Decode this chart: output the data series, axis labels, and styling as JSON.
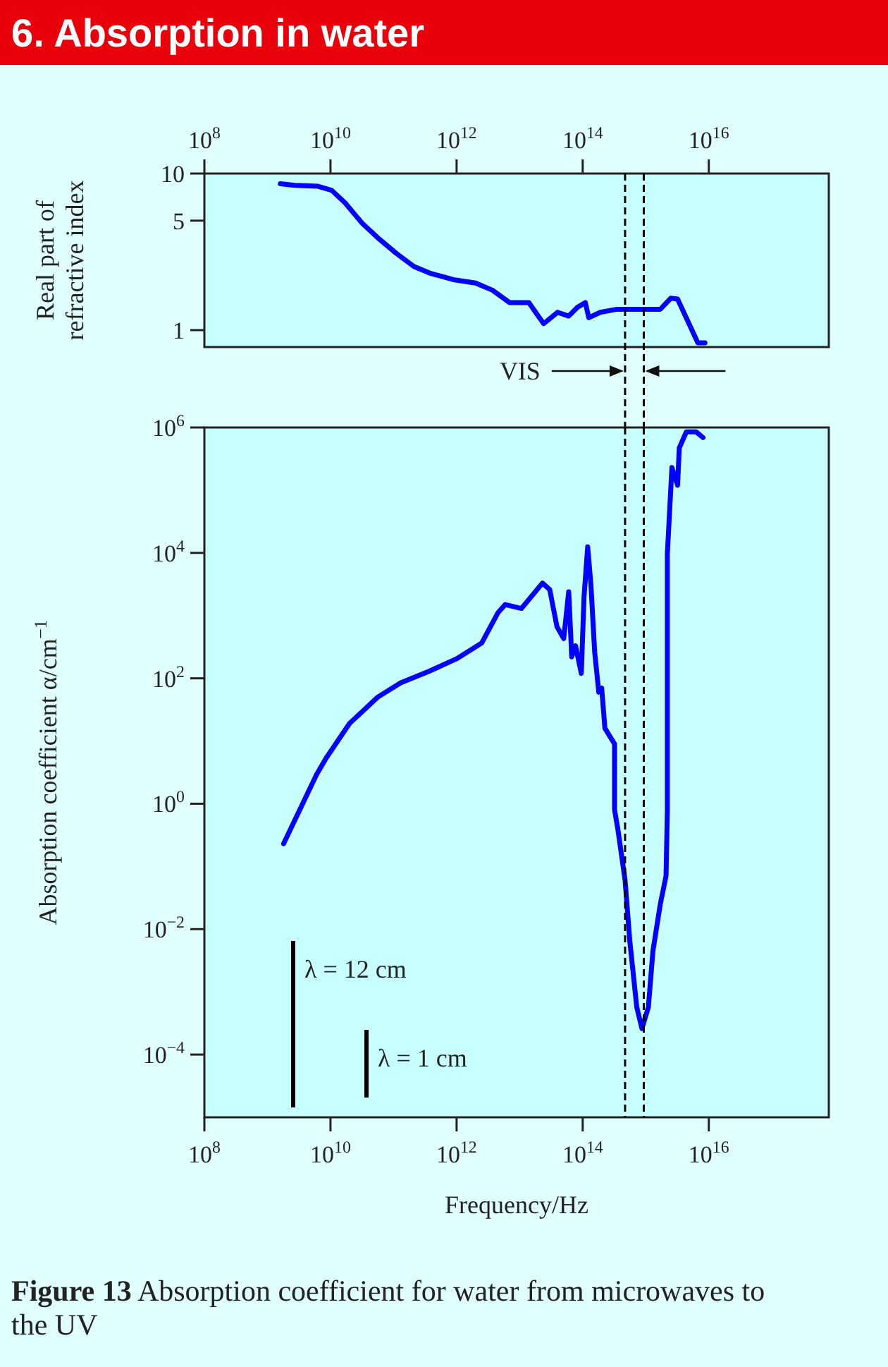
{
  "chart_data": [
    {
      "type": "line",
      "title": "6. Absorption in water",
      "ylabel": "Real part of refractive index",
      "log": "xy",
      "xlim": [
        100000000.0,
        8e+17
      ],
      "ylim": [
        0.78,
        10
      ],
      "xticks": [
        {
          "value": 100000000.0,
          "label": "10$^{8}$"
        },
        {
          "value": 10000000000.0,
          "label": "10$^{10}$"
        },
        {
          "value": 1000000000000.0,
          "label": "10$^{12}$"
        },
        {
          "value": 100000000000000.0,
          "label": "10$^{14}$"
        },
        {
          "value": 1e+16,
          "label": "10$^{16}$"
        }
      ],
      "yticks": [
        1,
        5,
        10
      ],
      "series": [
        {
          "color": "#0000ff",
          "x": [
            1600000000.0,
            2700000000.0,
            6200000000.0,
            10500000000.0,
            17000000000.0,
            32000000000.0,
            60000000000.0,
            110000000000.0,
            210000000000.0,
            390000000000.0,
            890000000000.0,
            2000000000000.0,
            3700000000000.0,
            6900000000000.0,
            14000000000000.0,
            24000000000000.0,
            40000000000000.0,
            60000000000000.0,
            83000000000000.0,
            110000000000000.0,
            125000000000000.0,
            190000000000000.0,
            350000000000000.0,
            1700000000000000.0,
            2500000000000000.0,
            3200000000000000.0,
            4700000000000000.0,
            6700000000000000.0,
            8700000000000000.0
          ],
          "values": [
            8.6,
            8.4,
            8.3,
            7.8,
            6.5,
            4.8,
            3.8,
            3.1,
            2.55,
            2.3,
            2.1,
            2.0,
            1.8,
            1.5,
            1.5,
            1.1,
            1.3,
            1.23,
            1.4,
            1.5,
            1.2,
            1.3,
            1.36,
            1.36,
            1.6,
            1.58,
            1.13,
            0.83,
            0.83
          ]
        }
      ],
      "ref_lines": [
        {
          "axis": "x",
          "value": 470000000000000.0,
          "color": "#000000",
          "line_style": "dashed"
        },
        {
          "axis": "x",
          "value": 930000000000000.0,
          "color": "#000000",
          "line_style": "dashed"
        }
      ],
      "annotations": [
        "VIS"
      ]
    },
    {
      "type": "line",
      "xlabel": "Frequency/Hz",
      "ylabel": "Absorption coefficient α/cm$^{−1}$",
      "log": "xy",
      "xlim": [
        100000000.0,
        8e+17
      ],
      "ylim": [
        1e-05,
        1000000.0
      ],
      "xticks": [
        {
          "value": 100000000.0,
          "label": "10$^{8}$"
        },
        {
          "value": 10000000000.0,
          "label": "10$^{10}$"
        },
        {
          "value": 1000000000000.0,
          "label": "10$^{12}$"
        },
        {
          "value": 100000000000000.0,
          "label": "10$^{14}$"
        },
        {
          "value": 1e+16,
          "label": "10$^{16}$"
        }
      ],
      "yticks": [
        {
          "value": 0.0001,
          "label": "10$^{−4}$"
        },
        {
          "value": 0.01,
          "label": "10$^{−2}$"
        },
        {
          "value": 1,
          "label": "10$^{0}$"
        },
        {
          "value": 100,
          "label": "10$^{2}$"
        },
        {
          "value": 10000.0,
          "label": "10$^{4}$"
        },
        {
          "value": 1000000.0,
          "label": "10$^{6}$"
        }
      ],
      "series": [
        {
          "color": "#0000ff",
          "x": [
            1800000000.0,
            6000000000.0,
            8500000000.0,
            20000000000.0,
            56000000000.0,
            130000000000.0,
            370000000000.0,
            1000000000000.0,
            2500000000000.0,
            4500000000000.0,
            5900000000000.0,
            10700000000000.0,
            16500000000000.0,
            23000000000000.0,
            30000000000000.0,
            39000000000000.0,
            50000000000000.0,
            60000000000000.0,
            67000000000000.0,
            77000000000000.0,
            95000000000000.0,
            105000000000000.0,
            120000000000000.0,
            135000000000000.0,
            155000000000000.0,
            180000000000000.0,
            200000000000000.0,
            225000000000000.0,
            260000000000000.0,
            320000000000000.0,
            320000000000000.0,
            360000000000000.0,
            470000000000000.0,
            560000000000000.0,
            720000000000000.0,
            870000000000000.0,
            1100000000000000.0,
            1300000000000000.0,
            1700000000000000.0,
            2100000000000000.0,
            2200000000000000.0,
            2200000000000000.0,
            2600000000000000.0,
            3200000000000000.0,
            3400000000000000.0,
            4400000000000000.0,
            6300000000000000.0,
            8100000000000000.0
          ],
          "values": [
            0.23,
            2.9,
            5.3,
            19,
            50,
            85,
            130,
            205,
            365,
            1100,
            1500,
            1300,
            2200,
            3300,
            2600,
            670,
            430,
            2400,
            220,
            330,
            120,
            2000,
            12500,
            3100,
            260,
            60,
            70,
            16,
            12.6,
            9,
            0.8,
            0.4,
            0.06,
            0.0063,
            0.00057,
            0.00026,
            0.00057,
            0.0045,
            0.025,
            0.071,
            0.8,
            9600,
            230000,
            120000,
            470000,
            850000,
            850000,
            690000
          ]
        }
      ],
      "ref_lines": [
        {
          "axis": "x",
          "value": 470000000000000.0,
          "color": "#000000",
          "line_style": "dashed"
        },
        {
          "axis": "x",
          "value": 930000000000000.0,
          "color": "#000000",
          "line_style": "dashed"
        }
      ],
      "annotations": [
        "λ = 12 cm",
        "λ = 1 cm",
        "Figure 13 Absorption coefficient for water from microwaves to the UV"
      ]
    }
  ]
}
